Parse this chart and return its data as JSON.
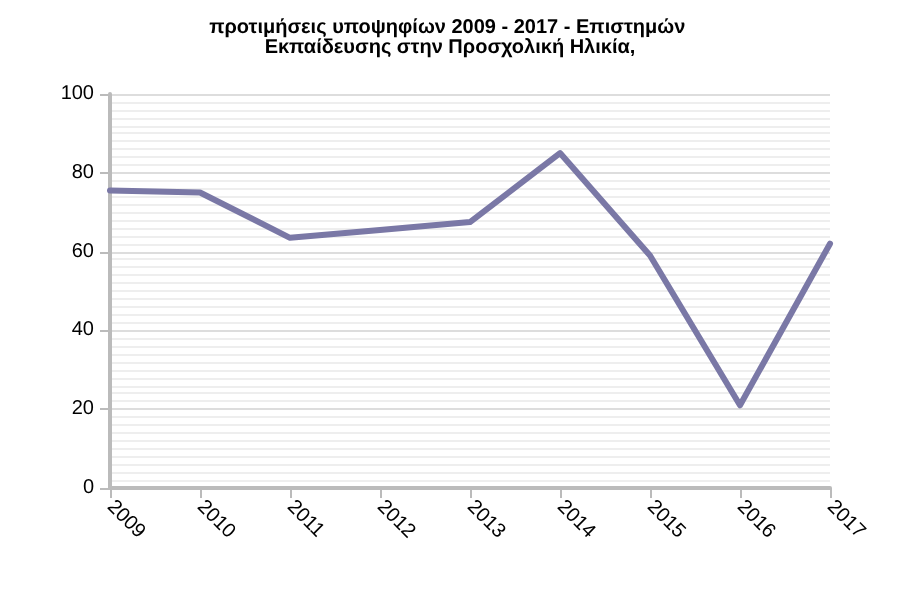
{
  "chart_data": {
    "type": "line",
    "title": "προτιμήσεις υποψηφίων 2009 - 2017 - Επιστημών Εκπαίδευσης στην Προσχολική Ηλικία,",
    "categories": [
      "2009",
      "2010",
      "2011",
      "2012",
      "2013",
      "2014",
      "2015",
      "2016",
      "2017"
    ],
    "series": [
      {
        "color": "#7a78a6",
        "values": [
          75.5,
          75,
          63.5,
          65.5,
          67.5,
          85,
          59,
          21,
          62
        ]
      }
    ],
    "ylim": [
      0,
      100
    ],
    "yticks": [
      0,
      20,
      40,
      60,
      80,
      100
    ],
    "grid": "y",
    "marker": "none",
    "line_style": "solid"
  }
}
